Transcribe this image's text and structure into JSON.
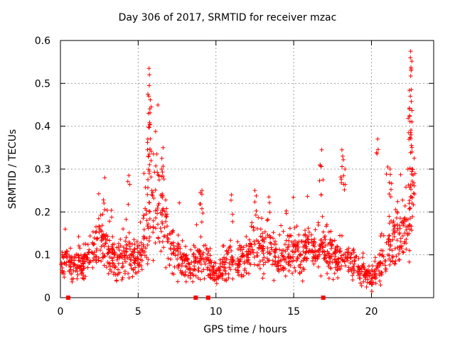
{
  "chart_data": {
    "type": "scatter",
    "title": "Day 306 of 2017, SRMTID for receiver mzac",
    "xlabel": "GPS time / hours",
    "ylabel": "SRMTID / TECUs",
    "xlim": [
      0,
      24
    ],
    "ylim": [
      0,
      0.6
    ],
    "x_ticks": [
      0,
      5,
      10,
      15,
      20
    ],
    "y_ticks": [
      0,
      0.1,
      0.2,
      0.3,
      0.4,
      0.5,
      0.6
    ],
    "grid": true,
    "marker": "+",
    "color": "#ff0000",
    "series": [
      {
        "name": "SRMTID",
        "trend": [
          [
            0.0,
            0.085
          ],
          [
            0.5,
            0.08
          ],
          [
            1.0,
            0.075
          ],
          [
            1.5,
            0.085
          ],
          [
            2.0,
            0.095
          ],
          [
            2.5,
            0.135
          ],
          [
            3.0,
            0.115
          ],
          [
            3.5,
            0.095
          ],
          [
            4.0,
            0.085
          ],
          [
            4.5,
            0.115
          ],
          [
            5.0,
            0.085
          ],
          [
            5.5,
            0.17
          ],
          [
            6.0,
            0.23
          ],
          [
            6.5,
            0.21
          ],
          [
            7.0,
            0.12
          ],
          [
            7.5,
            0.095
          ],
          [
            8.0,
            0.08
          ],
          [
            8.5,
            0.075
          ],
          [
            9.0,
            0.09
          ],
          [
            9.5,
            0.075
          ],
          [
            10.0,
            0.055
          ],
          [
            10.5,
            0.07
          ],
          [
            11.0,
            0.09
          ],
          [
            11.5,
            0.085
          ],
          [
            12.0,
            0.1
          ],
          [
            12.5,
            0.13
          ],
          [
            13.0,
            0.1
          ],
          [
            13.5,
            0.11
          ],
          [
            14.0,
            0.09
          ],
          [
            14.5,
            0.1
          ],
          [
            15.0,
            0.11
          ],
          [
            15.5,
            0.095
          ],
          [
            16.0,
            0.12
          ],
          [
            16.5,
            0.105
          ],
          [
            17.0,
            0.12
          ],
          [
            17.5,
            0.09
          ],
          [
            18.0,
            0.085
          ],
          [
            18.5,
            0.095
          ],
          [
            19.0,
            0.075
          ],
          [
            19.5,
            0.06
          ],
          [
            20.0,
            0.045
          ],
          [
            20.5,
            0.06
          ],
          [
            21.0,
            0.12
          ],
          [
            21.5,
            0.135
          ],
          [
            22.0,
            0.145
          ],
          [
            22.5,
            0.18
          ],
          [
            22.8,
            0.25
          ]
        ],
        "spikes": [
          [
            5.7,
            0.535
          ],
          [
            5.72,
            0.52
          ],
          [
            5.68,
            0.47
          ],
          [
            5.66,
            0.43
          ],
          [
            5.74,
            0.405
          ],
          [
            5.62,
            0.37
          ],
          [
            5.66,
            0.33
          ],
          [
            6.2,
            0.335
          ],
          [
            6.6,
            0.35
          ],
          [
            6.5,
            0.3
          ],
          [
            4.4,
            0.285
          ],
          [
            2.85,
            0.28
          ],
          [
            9.1,
            0.25
          ],
          [
            9.0,
            0.245
          ],
          [
            11.0,
            0.24
          ],
          [
            12.5,
            0.25
          ],
          [
            13.4,
            0.235
          ],
          [
            16.8,
            0.345
          ],
          [
            16.7,
            0.31
          ],
          [
            18.1,
            0.345
          ],
          [
            18.15,
            0.33
          ],
          [
            18.3,
            0.3
          ],
          [
            20.4,
            0.37
          ],
          [
            21.05,
            0.305
          ],
          [
            21.2,
            0.3
          ],
          [
            22.45,
            0.44
          ],
          [
            22.5,
            0.47
          ],
          [
            22.55,
            0.53
          ],
          [
            22.5,
            0.56
          ],
          [
            22.52,
            0.575
          ],
          [
            22.6,
            0.41
          ],
          [
            22.55,
            0.38
          ],
          [
            22.4,
            0.385
          ],
          [
            22.6,
            0.34
          ]
        ],
        "baseline_markers": [
          0.5,
          8.7,
          9.5,
          16.9
        ]
      }
    ]
  }
}
